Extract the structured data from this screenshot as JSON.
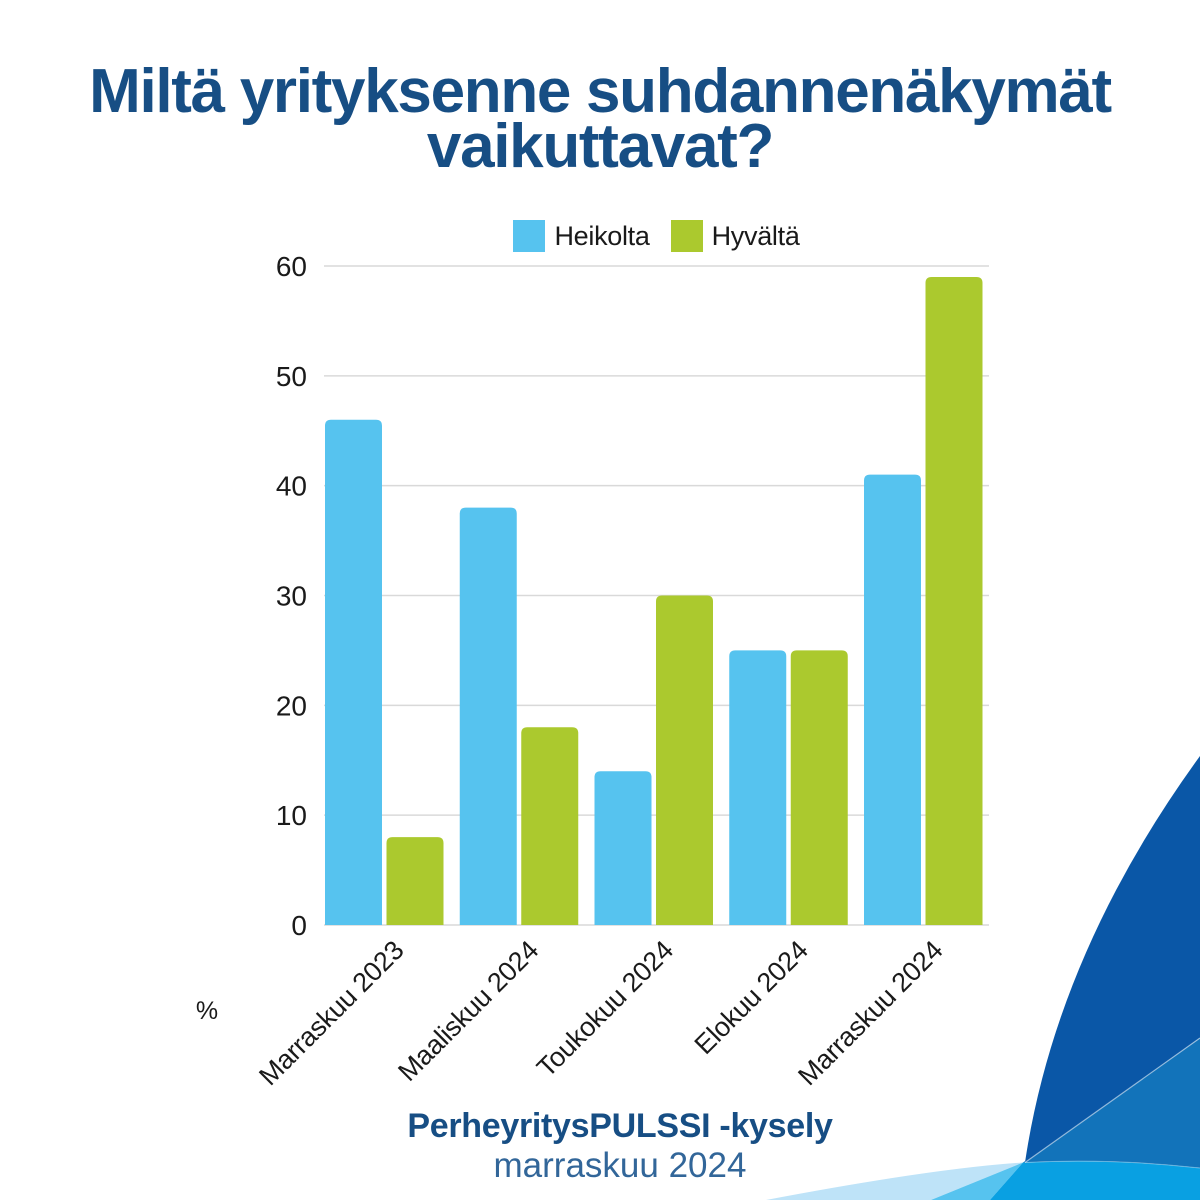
{
  "title": "Miltä yrityksenne suhdannenäkymät vaikuttavat?",
  "chart_data": {
    "type": "bar",
    "categories": [
      "Marraskuu 2023",
      "Maaliskuu 2024",
      "Toukokuu 2024",
      "Elokuu 2024",
      "Marraskuu 2024"
    ],
    "series": [
      {
        "name": "Heikolta",
        "color": "#56C3EF",
        "values": [
          46,
          38,
          14,
          25,
          41
        ]
      },
      {
        "name": "Hyvältä",
        "color": "#ABC92E",
        "values": [
          8,
          18,
          30,
          25,
          59
        ]
      }
    ],
    "ylabel": "%",
    "yticks": [
      0,
      10,
      20,
      30,
      40,
      50,
      60
    ],
    "ylim": [
      0,
      60
    ],
    "grid": true,
    "legend_position": "top"
  },
  "footer": {
    "line1": "PerheyritysPULSSI -kysely",
    "line2": "marraskuu 2024"
  },
  "colors": {
    "dark-blue": "#174E84",
    "mid-blue": "#326699",
    "bar-blue": "#56C3EF",
    "bar-green": "#ABC92E",
    "grid-gray": "#D9D9D9",
    "tick-text": "#1a1a1a",
    "corner-navy": "#0A57A7",
    "corner-medium": "#1273BA",
    "corner-cyan": "#09A0E2",
    "corner-sky": "#56C3EF",
    "corner-pale": "#BEE3F8"
  }
}
